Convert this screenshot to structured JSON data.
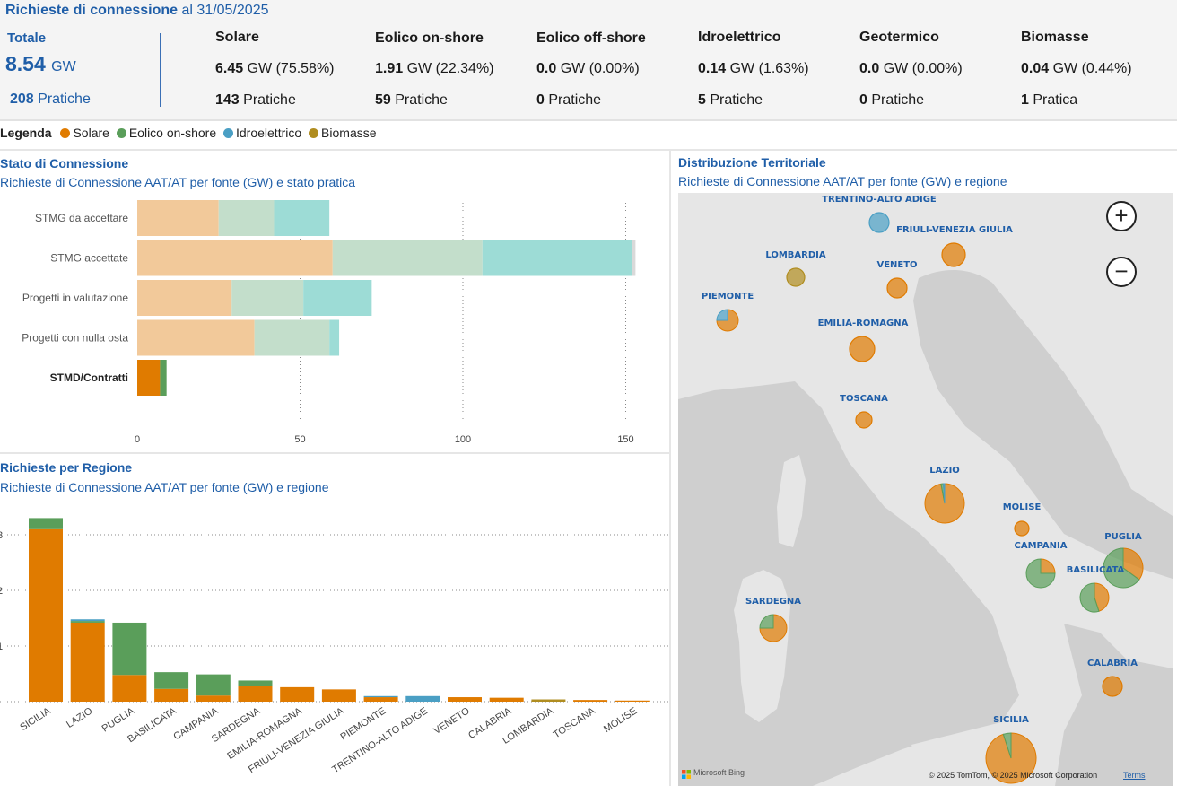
{
  "header": {
    "title_bold": "Richieste di connessione",
    "title_rest": "al 31/05/2025",
    "totale": {
      "label": "Totale",
      "value": "8.54",
      "unit": "GW",
      "pratiche_count": "208",
      "pratiche_label": "Pratiche"
    },
    "sources": [
      {
        "name": "Solare",
        "gw": "6.45",
        "gw_rest": "GW (75.58%)",
        "pratiche": "143",
        "pratiche_label": "Pratiche"
      },
      {
        "name": "Eolico on-shore",
        "gw": "1.91",
        "gw_rest": "GW (22.34%)",
        "pratiche": "59",
        "pratiche_label": "Pratiche"
      },
      {
        "name": "Eolico off-shore",
        "gw": "0.0",
        "gw_rest": "GW (0.00%)",
        "pratiche": "0",
        "pratiche_label": "Pratiche"
      },
      {
        "name": "Idroelettrico",
        "gw": "0.14",
        "gw_rest": "GW (1.63%)",
        "pratiche": "5",
        "pratiche_label": "Pratiche"
      },
      {
        "name": "Geotermico",
        "gw": "0.0",
        "gw_rest": "GW (0.00%)",
        "pratiche": "0",
        "pratiche_label": "Pratiche"
      },
      {
        "name": "Biomasse",
        "gw": "0.04",
        "gw_rest": "GW (0.44%)",
        "pratiche": "1",
        "pratiche_label": "Pratica"
      }
    ]
  },
  "legend": {
    "title": "Legenda",
    "items": [
      {
        "label": "Solare",
        "color": "#e07b00"
      },
      {
        "label": "Eolico on-shore",
        "color": "#5a9e5a"
      },
      {
        "label": "Idroelettrico",
        "color": "#4a9fc4"
      },
      {
        "label": "Biomasse",
        "color": "#b08d20"
      }
    ]
  },
  "colors": {
    "solare": "#e07b00",
    "eolico": "#5a9e5a",
    "idro": "#4a9fc4",
    "biomasse": "#b08d20",
    "teal": "#5ccfc2",
    "accent": "#1f5ea8"
  },
  "stato_panel": {
    "title": "Stato di Connessione",
    "subtitle": "Richieste di Connessione AAT/AT per fonte (GW) e stato pratica"
  },
  "regione_panel": {
    "title": "Richieste per Regione",
    "subtitle": "Richieste di Connessione AAT/AT per fonte (GW) e regione"
  },
  "map_panel": {
    "title": "Distribuzione Territoriale",
    "subtitle": "Richieste di Connessione AAT/AT per fonte (GW) e regione",
    "zoom_in": "+",
    "zoom_out": "−",
    "bing_label": "Microsoft Bing",
    "copyright": "© 2025 TomTom, © 2025 Microsoft Corporation",
    "terms": "Terms",
    "regions": [
      {
        "name": "TRENTINO-ALTO ADIGE",
        "solare": 0,
        "eolico": 0,
        "idro": 1,
        "biomasse": 0,
        "total": 0.1
      },
      {
        "name": "FRIULI-VENEZIA GIULIA",
        "solare": 1,
        "eolico": 0,
        "idro": 0,
        "biomasse": 0,
        "total": 0.2
      },
      {
        "name": "LOMBARDIA",
        "solare": 0,
        "eolico": 0,
        "idro": 0,
        "biomasse": 1,
        "total": 0.04
      },
      {
        "name": "VENETO",
        "solare": 1,
        "eolico": 0,
        "idro": 0,
        "biomasse": 0,
        "total": 0.1
      },
      {
        "name": "PIEMONTE",
        "solare": 0.75,
        "eolico": 0,
        "idro": 0.25,
        "biomasse": 0,
        "total": 0.1
      },
      {
        "name": "EMILIA-ROMAGNA",
        "solare": 1,
        "eolico": 0,
        "idro": 0,
        "biomasse": 0,
        "total": 0.25
      },
      {
        "name": "TOSCANA",
        "solare": 1,
        "eolico": 0,
        "idro": 0,
        "biomasse": 0,
        "total": 0.03
      },
      {
        "name": "LAZIO",
        "solare": 0.97,
        "eolico": 0.02,
        "idro": 0.01,
        "biomasse": 0,
        "total": 1.48
      },
      {
        "name": "MOLISE",
        "solare": 1,
        "eolico": 0,
        "idro": 0,
        "biomasse": 0,
        "total": 0.02
      },
      {
        "name": "CAMPANIA",
        "solare": 0.25,
        "eolico": 0.75,
        "idro": 0,
        "biomasse": 0,
        "total": 0.5
      },
      {
        "name": "PUGLIA",
        "solare": 0.35,
        "eolico": 0.65,
        "idro": 0,
        "biomasse": 0,
        "total": 1.42
      },
      {
        "name": "BASILICATA",
        "solare": 0.45,
        "eolico": 0.55,
        "idro": 0,
        "biomasse": 0,
        "total": 0.53
      },
      {
        "name": "SARDEGNA",
        "solare": 0.75,
        "eolico": 0.25,
        "idro": 0,
        "biomasse": 0,
        "total": 0.38
      },
      {
        "name": "CALABRIA",
        "solare": 1,
        "eolico": 0,
        "idro": 0,
        "biomasse": 0,
        "total": 0.08
      },
      {
        "name": "SICILIA",
        "solare": 0.95,
        "eolico": 0.05,
        "idro": 0,
        "biomasse": 0,
        "total": 3.3
      }
    ]
  },
  "chart_data": [
    {
      "type": "bar",
      "orientation": "horizontal",
      "stacked": true,
      "title": "Stato di Connessione",
      "subtitle": "Richieste di Connessione AAT/AT per fonte (GW) e stato pratica",
      "categories": [
        "STMG da accettare",
        "STMG accettate",
        "Progetti in valutazione",
        "Progetti con nulla osta",
        "STMD/Contratti"
      ],
      "highlighted_category": "STMD/Contratti",
      "series": [
        {
          "name": "Solare",
          "values": [
            25,
            60,
            29,
            36,
            7
          ]
        },
        {
          "name": "Eolico on-shore",
          "values": [
            17,
            46,
            22,
            23,
            2
          ]
        },
        {
          "name": "Idroelettrico",
          "values": [
            17,
            46,
            21,
            3,
            0
          ]
        },
        {
          "name": "Biomasse",
          "values": [
            0,
            1,
            0,
            0,
            0
          ]
        }
      ],
      "xticks": [
        0,
        50,
        100,
        150
      ],
      "xlim": [
        0,
        155
      ]
    },
    {
      "type": "bar",
      "orientation": "vertical",
      "stacked": true,
      "title": "Richieste per Regione",
      "subtitle": "Richieste di Connessione AAT/AT per fonte (GW) e regione",
      "categories": [
        "SICILIA",
        "LAZIO",
        "PUGLIA",
        "BASILICATA",
        "CAMPANIA",
        "SARDEGNA",
        "EMILIA-ROMAGNA",
        "FRIULI-VENEZIA GIULIA",
        "PIEMONTE",
        "TRENTINO-ALTO ADIGE",
        "VENETO",
        "CALABRIA",
        "LOMBARDIA",
        "TOSCANA",
        "MOLISE"
      ],
      "series": [
        {
          "name": "Solare",
          "values": [
            3.1,
            1.42,
            0.48,
            0.23,
            0.11,
            0.29,
            0.26,
            0.22,
            0.08,
            0,
            0.08,
            0.07,
            0,
            0.03,
            0.02
          ]
        },
        {
          "name": "Eolico on-shore",
          "values": [
            0.2,
            0.03,
            0.94,
            0.3,
            0.38,
            0.09,
            0,
            0,
            0,
            0,
            0,
            0,
            0,
            0,
            0
          ]
        },
        {
          "name": "Idroelettrico",
          "values": [
            0,
            0.03,
            0,
            0,
            0,
            0,
            0,
            0,
            0.02,
            0.1,
            0,
            0,
            0,
            0,
            0
          ]
        },
        {
          "name": "Biomasse",
          "values": [
            0,
            0,
            0,
            0,
            0,
            0,
            0,
            0,
            0,
            0,
            0,
            0,
            0.04,
            0,
            0
          ]
        }
      ],
      "yticks": [
        "1",
        "2",
        "3"
      ],
      "ylim": [
        0,
        3.4
      ]
    }
  ]
}
